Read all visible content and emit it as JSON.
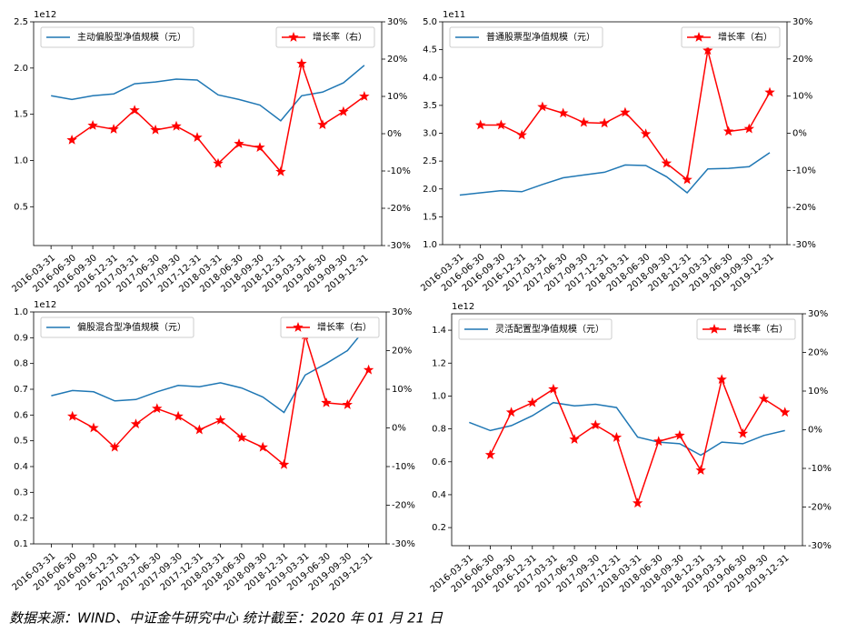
{
  "chart_data": [
    {
      "type": "line",
      "offset_label": "1e12",
      "categories": [
        "2016-03-31",
        "2016-06-30",
        "2016-09-30",
        "2016-12-31",
        "2017-03-31",
        "2017-06-30",
        "2017-09-30",
        "2017-12-31",
        "2018-03-31",
        "2018-06-30",
        "2018-09-30",
        "2018-12-31",
        "2019-03-31",
        "2019-06-30",
        "2019-09-30",
        "2019-12-31"
      ],
      "ylim": [
        0.08,
        2.5
      ],
      "yticks": [
        0.5,
        {
          "value": 1,
          "label": "1.0"
        },
        1.5,
        {
          "value": 2,
          "label": "2.0"
        },
        2.5
      ],
      "y2lim": [
        -30,
        30
      ],
      "y2ticks": [
        {
          "value": -30,
          "label": "-30%"
        },
        {
          "value": -20,
          "label": "-20%"
        },
        {
          "value": -10,
          "label": "-10%"
        },
        {
          "value": 0,
          "label": "0%"
        },
        {
          "value": 10,
          "label": "10%"
        },
        {
          "value": 20,
          "label": "20%"
        },
        {
          "value": 30,
          "label": "30%"
        }
      ],
      "series": [
        {
          "name": "主动偏股型净值规模（元）",
          "color": "#1f77b4",
          "legend_loc": "upper left",
          "values": [
            1.7,
            1.66,
            1.7,
            1.72,
            1.83,
            1.85,
            1.88,
            1.87,
            1.71,
            1.66,
            1.6,
            1.43,
            1.7,
            1.74,
            1.84,
            2.03
          ]
        },
        {
          "name": "增长率（右）",
          "color": "#ff0000",
          "axis": "y2",
          "marker": "star",
          "legend_loc": "upper right",
          "values": [
            null,
            -1.7,
            2.2,
            1.2,
            6.3,
            1.0,
            2.0,
            -1.0,
            -8.0,
            -2.7,
            -3.7,
            -10.2,
            18.8,
            2.4,
            5.9,
            10.0
          ]
        }
      ]
    },
    {
      "type": "line",
      "offset_label": "1e11",
      "categories": [
        "2016-03-31",
        "2016-06-30",
        "2016-09-30",
        "2016-12-31",
        "2017-03-31",
        "2017-06-30",
        "2017-09-30",
        "2017-12-31",
        "2018-03-31",
        "2018-06-30",
        "2018-09-30",
        "2018-12-31",
        "2019-03-31",
        "2019-06-30",
        "2019-09-30",
        "2019-12-31"
      ],
      "ylim": [
        1,
        5
      ],
      "yticks": [
        {
          "value": 1,
          "label": "1.0"
        },
        1.5,
        {
          "value": 2,
          "label": "2.0"
        },
        2.5,
        {
          "value": 3,
          "label": "3.0"
        },
        3.5,
        {
          "value": 4,
          "label": "4.0"
        },
        4.5,
        {
          "value": 5,
          "label": "5.0"
        }
      ],
      "y2lim": [
        -30,
        30
      ],
      "y2ticks": [
        {
          "value": -30,
          "label": "-30%"
        },
        {
          "value": -20,
          "label": "-20%"
        },
        {
          "value": -10,
          "label": "-10%"
        },
        {
          "value": 0,
          "label": "0%"
        },
        {
          "value": 10,
          "label": "10%"
        },
        {
          "value": 20,
          "label": "20%"
        },
        {
          "value": 30,
          "label": "30%"
        }
      ],
      "series": [
        {
          "name": "普通股票型净值规模（元）",
          "color": "#1f77b4",
          "legend_loc": "upper left",
          "values": [
            1.89,
            1.93,
            1.97,
            1.95,
            2.08,
            2.2,
            2.25,
            2.3,
            2.43,
            2.42,
            2.22,
            1.93,
            2.36,
            2.37,
            2.4,
            2.65
          ]
        },
        {
          "name": "增长率（右）",
          "color": "#ff0000",
          "axis": "y2",
          "marker": "star",
          "legend_loc": "upper right",
          "values": [
            null,
            2.2,
            2.2,
            -0.5,
            7.1,
            5.4,
            2.9,
            2.7,
            5.6,
            -0.2,
            -8.1,
            -12.5,
            22.3,
            0.5,
            1.2,
            11.0
          ]
        }
      ]
    },
    {
      "type": "line",
      "offset_label": "1e12",
      "categories": [
        "2016-03-31",
        "2016-06-30",
        "2016-09-30",
        "2016-12-31",
        "2017-03-31",
        "2017-06-30",
        "2017-09-30",
        "2017-12-31",
        "2018-03-31",
        "2018-06-30",
        "2018-09-30",
        "2018-12-31",
        "2019-03-31",
        "2019-06-30",
        "2019-09-30",
        "2019-12-31"
      ],
      "ylim": [
        0.1,
        1
      ],
      "yticks": [
        0.1,
        0.2,
        0.3,
        0.4,
        0.5,
        0.6,
        0.7,
        0.8,
        0.9,
        {
          "value": 1,
          "label": "1.0"
        }
      ],
      "y2lim": [
        -30,
        30
      ],
      "y2ticks": [
        {
          "value": -30,
          "label": "-30%"
        },
        {
          "value": -20,
          "label": "-20%"
        },
        {
          "value": -10,
          "label": "-10%"
        },
        {
          "value": 0,
          "label": "0%"
        },
        {
          "value": 10,
          "label": "10%"
        },
        {
          "value": 20,
          "label": "20%"
        },
        {
          "value": 30,
          "label": "30%"
        }
      ],
      "series": [
        {
          "name": "偏股混合型净值规模（元）",
          "color": "#1f77b4",
          "legend_loc": "upper left",
          "values": [
            0.675,
            0.695,
            0.69,
            0.655,
            0.66,
            0.69,
            0.715,
            0.71,
            0.725,
            0.705,
            0.67,
            0.61,
            0.755,
            0.8,
            0.85,
            0.95
          ]
        },
        {
          "name": "增长率（右）",
          "color": "#ff0000",
          "axis": "y2",
          "marker": "star",
          "legend_loc": "upper right",
          "values": [
            null,
            3.0,
            0.0,
            -5.0,
            1.0,
            5.0,
            3.0,
            -0.5,
            2.0,
            -2.5,
            -5.0,
            -9.5,
            24.0,
            6.5,
            6.0,
            15.0
          ]
        }
      ]
    },
    {
      "type": "line",
      "offset_label": "1e12",
      "categories": [
        "2016-03-31",
        "2016-06-30",
        "2016-09-30",
        "2016-12-31",
        "2017-03-31",
        "2017-06-30",
        "2017-09-30",
        "2017-12-31",
        "2018-03-31",
        "2018-06-30",
        "2018-09-30",
        "2018-12-31",
        "2019-03-31",
        "2019-06-30",
        "2019-09-30",
        "2019-12-31"
      ],
      "ylim": [
        0.09,
        1.5
      ],
      "yticks": [
        0.2,
        0.4,
        0.6,
        0.8,
        {
          "value": 1,
          "label": "1.0"
        },
        1.2,
        1.4
      ],
      "y2lim": [
        -30,
        30
      ],
      "y2ticks": [
        {
          "value": -30,
          "label": "-30%"
        },
        {
          "value": -20,
          "label": "-20%"
        },
        {
          "value": -10,
          "label": "-10%"
        },
        {
          "value": 0,
          "label": "0%"
        },
        {
          "value": 10,
          "label": "10%"
        },
        {
          "value": 20,
          "label": "20%"
        },
        {
          "value": 30,
          "label": "30%"
        }
      ],
      "series": [
        {
          "name": "灵活配置型净值规模（元）",
          "color": "#1f77b4",
          "legend_loc": "upper left",
          "values": [
            0.84,
            0.79,
            0.82,
            0.88,
            0.96,
            0.94,
            0.95,
            0.93,
            0.75,
            0.72,
            0.71,
            0.64,
            0.72,
            0.71,
            0.76,
            0.79
          ]
        },
        {
          "name": "增长率（右）",
          "color": "#ff0000",
          "axis": "y2",
          "marker": "star",
          "legend_loc": "upper right",
          "values": [
            null,
            -6.5,
            4.5,
            7.0,
            10.5,
            -2.5,
            1.2,
            -2.0,
            -19.0,
            -3.0,
            -1.5,
            -10.5,
            13.0,
            -1.0,
            8.0,
            4.5
          ]
        }
      ]
    }
  ],
  "footer": "数据来源：WIND、中证金牛研究中心  统计截至：2020 年 01 月 21 日"
}
